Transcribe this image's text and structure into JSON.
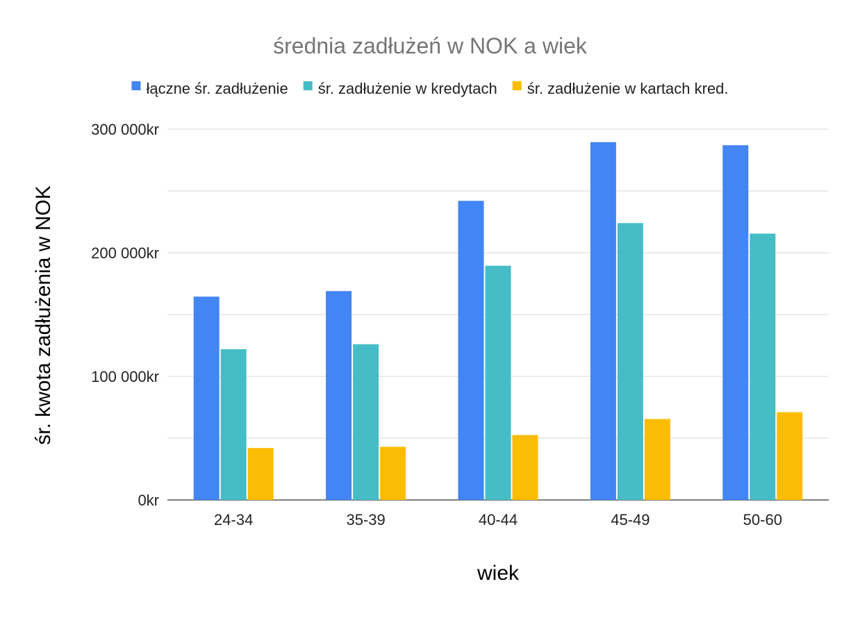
{
  "chart_data": {
    "type": "bar",
    "title": "średnia zadłużeń w NOK a wiek",
    "xlabel": "wiek",
    "ylabel": "śr. kwota zadłużenia w NOK",
    "categories": [
      "24-34",
      "35-39",
      "40-44",
      "45-49",
      "50-60"
    ],
    "series": [
      {
        "name": "łączne śr. zadłużenie",
        "color": "#4285F4",
        "values": [
          164500,
          169000,
          242000,
          289500,
          287000
        ]
      },
      {
        "name": "śr. zadłużenie w kredytach",
        "color": "#46BDC6",
        "values": [
          122000,
          126000,
          189500,
          224000,
          215500
        ]
      },
      {
        "name": "śr. zadłużenie w kartach kred.",
        "color": "#FBBC04",
        "values": [
          42000,
          43000,
          52500,
          65500,
          71000
        ]
      }
    ],
    "ylim": [
      0,
      300000
    ],
    "y_ticks": [
      {
        "value": 0,
        "label": "0kr"
      },
      {
        "value": 100000,
        "label": "100 000kr"
      },
      {
        "value": 200000,
        "label": "200 000kr"
      },
      {
        "value": 300000,
        "label": "300 000kr"
      }
    ],
    "minor_gridlines": [
      50000,
      150000,
      250000
    ],
    "grid": true,
    "legend_position": "top"
  }
}
